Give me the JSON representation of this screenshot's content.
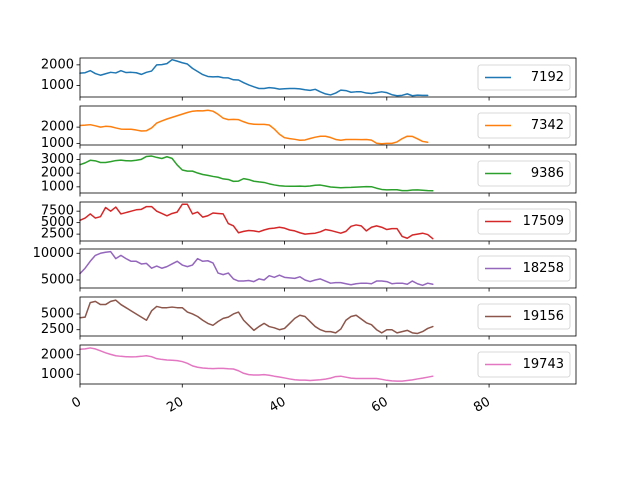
{
  "chart_data": {
    "type": "line",
    "x_ticks": [
      0,
      20,
      40,
      60,
      80
    ],
    "x_tick_labels": [
      "0",
      "20",
      "40",
      "60",
      "80"
    ],
    "xlim": [
      0,
      97
    ],
    "grid": false,
    "legend_placement": "right",
    "panels": [
      {
        "series": {
          "name": "7192",
          "color": "#1f77b4",
          "values": [
            1600,
            1620,
            1720,
            1580,
            1500,
            1570,
            1640,
            1610,
            1720,
            1630,
            1640,
            1620,
            1540,
            1640,
            1700,
            2000,
            2010,
            2060,
            2250,
            2180,
            2100,
            2040,
            1830,
            1680,
            1530,
            1440,
            1420,
            1430,
            1380,
            1370,
            1280,
            1270,
            1140,
            1030,
            940,
            860,
            860,
            900,
            880,
            830,
            850,
            860,
            860,
            840,
            800,
            770,
            820,
            700,
            600,
            550,
            640,
            780,
            760,
            680,
            700,
            700,
            640,
            620,
            660,
            700,
            660,
            560,
            510,
            530,
            600,
            510,
            540,
            530,
            530
          ]
        },
        "ylim": [
          450,
          2330
        ],
        "y_ticks": [
          1000,
          2000
        ],
        "y_tick_labels": [
          "1000",
          "2000"
        ]
      },
      {
        "series": {
          "name": "7342",
          "color": "#ff7f0e",
          "values": [
            2100,
            2120,
            2150,
            2080,
            2000,
            2050,
            2030,
            1950,
            1880,
            1870,
            1870,
            1820,
            1760,
            1780,
            1950,
            2250,
            2380,
            2500,
            2600,
            2700,
            2800,
            2900,
            2980,
            3010,
            3000,
            3040,
            2980,
            2790,
            2550,
            2460,
            2480,
            2460,
            2330,
            2220,
            2180,
            2170,
            2170,
            2130,
            1880,
            1560,
            1350,
            1290,
            1250,
            1190,
            1210,
            1300,
            1380,
            1440,
            1440,
            1360,
            1240,
            1190,
            1240,
            1240,
            1240,
            1230,
            1240,
            1200,
            1010,
            980,
            1000,
            1000,
            1090,
            1290,
            1440,
            1430,
            1280,
            1120,
            1070
          ]
        },
        "ylim": [
          900,
          3300
        ],
        "y_ticks": [
          1000,
          2000
        ],
        "y_tick_labels": [
          "1000",
          "2000"
        ]
      },
      {
        "series": {
          "name": "9386",
          "color": "#2ca02c",
          "values": [
            2620,
            2750,
            2940,
            2900,
            2780,
            2780,
            2840,
            2920,
            2950,
            2910,
            2900,
            2940,
            3010,
            3220,
            3250,
            3150,
            3070,
            3200,
            3080,
            2600,
            2230,
            2150,
            2150,
            2010,
            1900,
            1840,
            1760,
            1700,
            1580,
            1540,
            1400,
            1420,
            1600,
            1530,
            1410,
            1360,
            1320,
            1220,
            1140,
            1080,
            1050,
            1040,
            1040,
            1050,
            1030,
            1060,
            1120,
            1130,
            1060,
            990,
            960,
            930,
            950,
            960,
            980,
            1000,
            1020,
            1010,
            900,
            810,
            780,
            790,
            790,
            720,
            720,
            770,
            780,
            750,
            720,
            710
          ]
        },
        "ylim": [
          550,
          3400
        ],
        "y_ticks": [
          1000,
          2000,
          3000
        ],
        "y_tick_labels": [
          "1000",
          "2000",
          "3000"
        ]
      },
      {
        "series": {
          "name": "17509",
          "color": "#d62728",
          "values": [
            5500,
            6000,
            6900,
            6000,
            6300,
            8300,
            7500,
            8400,
            6900,
            7200,
            7500,
            7800,
            7900,
            8500,
            8500,
            7500,
            7000,
            6500,
            7000,
            7300,
            9000,
            9000,
            6900,
            7300,
            6200,
            6500,
            7100,
            7000,
            6900,
            4800,
            4300,
            2800,
            3100,
            3300,
            3200,
            3000,
            3400,
            3700,
            3800,
            4000,
            3800,
            3400,
            3200,
            2800,
            2500,
            2600,
            2700,
            3000,
            3500,
            3300,
            3000,
            2700,
            3100,
            4200,
            4500,
            4300,
            3200,
            4000,
            4300,
            4000,
            3500,
            3700,
            3700,
            2000,
            1600,
            2300,
            2500,
            2700,
            2400,
            1500
          ]
        },
        "ylim": [
          1000,
          9500
        ],
        "y_ticks": [
          2500,
          5000,
          7500
        ],
        "y_tick_labels": [
          "2500",
          "5000",
          "7500"
        ]
      },
      {
        "series": {
          "name": "18258",
          "color": "#9467bd",
          "values": [
            6200,
            7200,
            8500,
            9600,
            10000,
            10200,
            10300,
            9000,
            9600,
            9000,
            8500,
            8500,
            8000,
            8100,
            7200,
            7600,
            7200,
            7500,
            8000,
            8500,
            7800,
            7500,
            7800,
            9000,
            8500,
            8600,
            8200,
            6300,
            6000,
            6300,
            5200,
            4800,
            4800,
            4900,
            4700,
            5200,
            5000,
            5800,
            5500,
            5900,
            5500,
            5400,
            5300,
            5600,
            5000,
            4700,
            5000,
            5200,
            4800,
            4400,
            4500,
            4500,
            4300,
            4100,
            4300,
            4400,
            4400,
            4300,
            4800,
            4800,
            4700,
            4300,
            4400,
            4400,
            4200,
            4800,
            4300,
            4000,
            4400,
            4200
          ]
        },
        "ylim": [
          3500,
          10800
        ],
        "y_ticks": [
          5000,
          10000
        ],
        "y_tick_labels": [
          "5000",
          "10000"
        ]
      },
      {
        "series": {
          "name": "19156",
          "color": "#8c564b",
          "values": [
            4400,
            4500,
            6800,
            7000,
            6500,
            6500,
            7000,
            7200,
            6500,
            6000,
            5500,
            5000,
            4500,
            4000,
            5500,
            6200,
            6000,
            6000,
            6100,
            6000,
            6000,
            5300,
            5000,
            4600,
            4000,
            3500,
            3200,
            3800,
            4300,
            4500,
            5000,
            5300,
            4000,
            3200,
            2400,
            3000,
            3500,
            3000,
            2800,
            2500,
            2700,
            3500,
            4300,
            4800,
            4600,
            3800,
            3000,
            2500,
            2200,
            2200,
            2000,
            2600,
            4000,
            4600,
            4800,
            4200,
            3600,
            3300,
            2500,
            2000,
            2500,
            2500,
            2000,
            2200,
            2400,
            2000,
            1900,
            2200,
            2700,
            3000
          ]
        },
        "ylim": [
          1500,
          7700
        ],
        "y_ticks": [
          2500,
          5000
        ],
        "y_tick_labels": [
          "2500",
          "5000"
        ]
      },
      {
        "series": {
          "name": "19743",
          "color": "#e377c2",
          "values": [
            2280,
            2300,
            2350,
            2300,
            2200,
            2100,
            2020,
            1950,
            1920,
            1900,
            1890,
            1900,
            1920,
            1950,
            1900,
            1800,
            1760,
            1730,
            1720,
            1700,
            1650,
            1560,
            1430,
            1360,
            1320,
            1300,
            1290,
            1300,
            1300,
            1280,
            1270,
            1180,
            1050,
            980,
            960,
            960,
            980,
            950,
            900,
            860,
            810,
            760,
            720,
            700,
            700,
            680,
            700,
            720,
            750,
            800,
            880,
            900,
            850,
            800,
            780,
            780,
            780,
            780,
            780,
            740,
            690,
            660,
            650,
            650,
            680,
            710,
            760,
            800,
            850,
            900
          ]
        },
        "ylim": [
          500,
          2500
        ],
        "y_ticks": [
          1000,
          2000
        ],
        "y_tick_labels": [
          "1000",
          "2000"
        ]
      }
    ]
  }
}
